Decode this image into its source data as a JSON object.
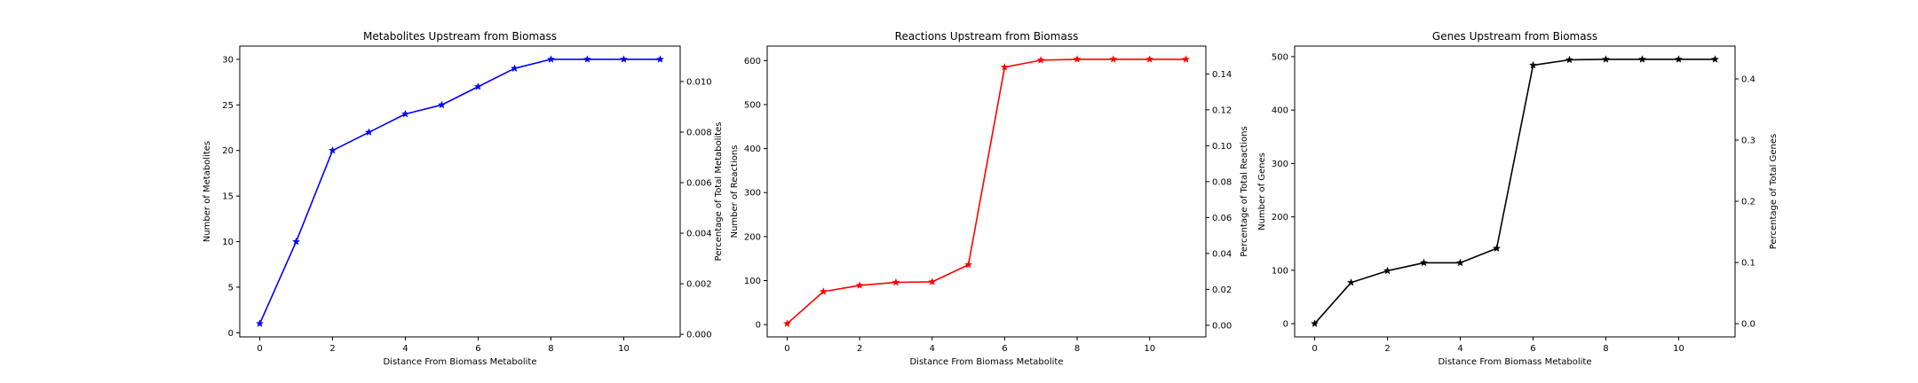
{
  "chart_data": [
    {
      "type": "line",
      "title": "Metabolites Upstream from Biomass",
      "xlabel": "Distance From Biomass Metabolite",
      "ylabel": "Number of Metabolites",
      "y2label": "Percentage of Total Metabolites",
      "color": "#0000ff",
      "marker": "star",
      "x": [
        0,
        1,
        2,
        3,
        4,
        5,
        6,
        7,
        8,
        9,
        10,
        11
      ],
      "values": [
        1,
        10,
        20,
        22,
        24,
        25,
        27,
        29,
        30,
        30,
        30,
        30
      ],
      "xlim": [
        -0.55,
        11.55
      ],
      "ylim": [
        -0.45,
        31.45
      ],
      "y2lim": [
        -0.0001,
        0.0114
      ],
      "xticks": [
        0,
        2,
        4,
        6,
        8,
        10
      ],
      "yticks": [
        0,
        5,
        10,
        15,
        20,
        25,
        30
      ],
      "y2ticks": [
        0.0,
        0.002,
        0.004,
        0.006,
        0.008,
        0.01
      ],
      "xtick_labels": [
        "0",
        "2",
        "4",
        "6",
        "8",
        "10"
      ],
      "ytick_labels": [
        "0",
        "5",
        "10",
        "15",
        "20",
        "25",
        "30"
      ],
      "y2tick_labels": [
        "0.000",
        "0.002",
        "0.004",
        "0.006",
        "0.008",
        "0.010"
      ],
      "grid": false,
      "legend": "none"
    },
    {
      "type": "line",
      "title": "Reactions Upstream from Biomass",
      "xlabel": "Distance From Biomass Metabolite",
      "ylabel": "Number of Reactions",
      "y2label": "Percentage of Total Reactions",
      "color": "#ff0000",
      "marker": "star",
      "x": [
        0,
        1,
        2,
        3,
        4,
        5,
        6,
        7,
        8,
        9,
        10,
        11
      ],
      "values": [
        2,
        75,
        89,
        96,
        97,
        136,
        585,
        601,
        603,
        603,
        603,
        603
      ],
      "xlim": [
        -0.55,
        11.55
      ],
      "ylim": [
        -28,
        633
      ],
      "y2lim": [
        -0.0065,
        0.1555
      ],
      "xticks": [
        0,
        2,
        4,
        6,
        8,
        10
      ],
      "yticks": [
        0,
        100,
        200,
        300,
        400,
        500,
        600
      ],
      "y2ticks": [
        0.0,
        0.02,
        0.04,
        0.06,
        0.08,
        0.1,
        0.12,
        0.14
      ],
      "xtick_labels": [
        "0",
        "2",
        "4",
        "6",
        "8",
        "10"
      ],
      "ytick_labels": [
        "0",
        "100",
        "200",
        "300",
        "400",
        "500",
        "600"
      ],
      "y2tick_labels": [
        "0.00",
        "0.02",
        "0.04",
        "0.06",
        "0.08",
        "0.10",
        "0.12",
        "0.14"
      ],
      "grid": false,
      "legend": "none"
    },
    {
      "type": "line",
      "title": "Genes Upstream from Biomass",
      "xlabel": "Distance From Biomass Metabolite",
      "ylabel": "Number of Genes",
      "y2label": "Percentage of Total Genes",
      "color": "#000000",
      "marker": "star",
      "x": [
        0,
        1,
        2,
        3,
        4,
        5,
        6,
        7,
        8,
        9,
        10,
        11
      ],
      "values": [
        0,
        77,
        99,
        114,
        114,
        141,
        484,
        494,
        495,
        495,
        495,
        495
      ],
      "xlim": [
        -0.55,
        11.55
      ],
      "ylim": [
        -24.75,
        519.75
      ],
      "y2lim": [
        -0.0216,
        0.4536
      ],
      "xticks": [
        0,
        2,
        4,
        6,
        8,
        10
      ],
      "yticks": [
        0,
        100,
        200,
        300,
        400,
        500
      ],
      "y2ticks": [
        0.0,
        0.1,
        0.2,
        0.3,
        0.4
      ],
      "xtick_labels": [
        "0",
        "2",
        "4",
        "6",
        "8",
        "10"
      ],
      "ytick_labels": [
        "0",
        "100",
        "200",
        "300",
        "400",
        "500"
      ],
      "y2tick_labels": [
        "0.0",
        "0.1",
        "0.2",
        "0.3",
        "0.4"
      ],
      "grid": false,
      "legend": "none"
    }
  ]
}
